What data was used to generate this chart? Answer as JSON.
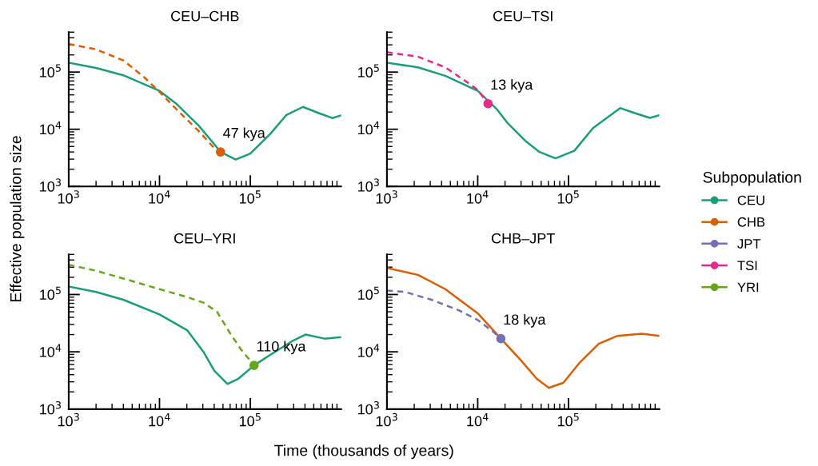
{
  "chart_data": [
    {
      "type": "line",
      "title": "CEU–CHB",
      "ylabel": "Effective population size",
      "legend": "right",
      "legend_title": "Subpopulation",
      "xlim": [
        1000,
        1000000
      ],
      "ylim": [
        1000,
        500000
      ],
      "xticks": [
        {
          "value": 1000,
          "label": "10$^{3}$"
        },
        {
          "value": 10000,
          "label": "10$^{4}$"
        },
        {
          "value": 100000,
          "label": "10$^{5}$"
        }
      ],
      "yticks": [
        {
          "value": 1000,
          "label": "10$^{3}$"
        },
        {
          "value": 10000,
          "label": "10$^{4}$"
        },
        {
          "value": 100000,
          "label": "10$^{5}$"
        }
      ],
      "log": "xy",
      "grid": false,
      "series": [
        {
          "name": "CEU",
          "color": "#1b9e77",
          "line_style": "solid",
          "x": [
            1000,
            2000,
            4000,
            10000,
            15500,
            27000,
            40000,
            47000,
            69000,
            100000,
            167000,
            250000,
            380000,
            575000,
            800000,
            1000000
          ],
          "values": [
            146000,
            118000,
            88000,
            47000,
            27500,
            11600,
            5500,
            4000,
            2950,
            3760,
            8400,
            17800,
            24600,
            19000,
            15700,
            17500
          ]
        },
        {
          "name": "CHB",
          "color": "#d95f02",
          "line_style": "dashed",
          "x": [
            1000,
            2000,
            4000,
            6800,
            10000,
            15500,
            27000,
            40000,
            47000
          ],
          "values": [
            310000,
            250000,
            160000,
            81000,
            45000,
            22000,
            9300,
            4700,
            4000
          ]
        },
        {
          "type": "scatter",
          "marker": "circle",
          "color": "#d95f02",
          "x": [
            47000
          ],
          "values": [
            4000
          ]
        }
      ],
      "annotations": [
        {
          "text": "47 kya",
          "x": 47000,
          "y": 4000
        }
      ]
    },
    {
      "type": "line",
      "title": "CEU–TSI",
      "xlim": [
        1000,
        1000000
      ],
      "ylim": [
        1000,
        500000
      ],
      "xticks": [
        {
          "value": 1000,
          "label": "10$^{3}$"
        },
        {
          "value": 10000,
          "label": "10$^{4}$"
        },
        {
          "value": 100000,
          "label": "10$^{5}$"
        }
      ],
      "yticks": [
        {
          "value": 1000,
          "label": "10$^{3}$"
        },
        {
          "value": 10000,
          "label": "10$^{4}$"
        },
        {
          "value": 100000,
          "label": "10$^{5}$"
        }
      ],
      "log": "xy",
      "grid": false,
      "series": [
        {
          "name": "CEU",
          "color": "#1b9e77",
          "line_style": "solid",
          "x": [
            1000,
            2200,
            4400,
            10000,
            16000,
            21200,
            34100,
            48000,
            72000,
            116000,
            186000,
            371000,
            521000,
            786000,
            1000000
          ],
          "values": [
            146000,
            121000,
            86000,
            47000,
            23000,
            13000,
            6100,
            4000,
            3100,
            4200,
            10500,
            23500,
            19500,
            15800,
            17600
          ]
        },
        {
          "name": "TSI",
          "color": "#e7298a",
          "line_style": "dashed",
          "x": [
            1000,
            2200,
            4400,
            7600,
            10000,
            13000
          ],
          "values": [
            223000,
            186000,
            121000,
            67000,
            49000,
            28000
          ]
        },
        {
          "type": "scatter",
          "marker": "circle",
          "color": "#e7298a",
          "x": [
            13000
          ],
          "values": [
            28000
          ]
        }
      ],
      "annotations": [
        {
          "text": "13 kya",
          "x": 13000,
          "y": 28000
        }
      ]
    },
    {
      "type": "line",
      "title": "CEU–YRI",
      "xlabel": "Time (thousands of years)",
      "xlim": [
        1000,
        1000000
      ],
      "ylim": [
        1000,
        500000
      ],
      "xticks": [
        {
          "value": 1000,
          "label": "10$^{3}$"
        },
        {
          "value": 10000,
          "label": "10$^{4}$"
        },
        {
          "value": 100000,
          "label": "10$^{5}$"
        }
      ],
      "yticks": [
        {
          "value": 1000,
          "label": "10$^{3}$"
        },
        {
          "value": 10000,
          "label": "10$^{4}$"
        },
        {
          "value": 100000,
          "label": "10$^{5}$"
        }
      ],
      "log": "xy",
      "grid": false,
      "series": [
        {
          "name": "CEU",
          "color": "#1b9e77",
          "line_style": "solid",
          "x": [
            1000,
            2000,
            4000,
            10000,
            20300,
            30500,
            40000,
            56000,
            74000,
            110000,
            168000,
            290000,
            405000,
            655000,
            1000000
          ],
          "values": [
            138000,
            111000,
            81000,
            45000,
            23600,
            10000,
            4700,
            2750,
            3400,
            5800,
            9000,
            15400,
            20000,
            17000,
            18000
          ]
        },
        {
          "name": "YRI",
          "color": "#66a61e",
          "line_style": "dashed",
          "x": [
            1000,
            2000,
            4000,
            10000,
            20300,
            30500,
            43000,
            60000,
            79000,
            110000
          ],
          "values": [
            330000,
            260000,
            190000,
            124000,
            90000,
            72000,
            50000,
            21000,
            11000,
            5800
          ]
        },
        {
          "type": "scatter",
          "marker": "circle",
          "color": "#66a61e",
          "x": [
            110000
          ],
          "values": [
            5800
          ]
        }
      ],
      "annotations": [
        {
          "text": "110 kya",
          "x": 110000,
          "y": 5800
        }
      ]
    },
    {
      "type": "line",
      "title": "CHB–JPT",
      "xlim": [
        1000,
        1000000
      ],
      "ylim": [
        1000,
        500000
      ],
      "xticks": [
        {
          "value": 1000,
          "label": "10$^{3}$"
        },
        {
          "value": 10000,
          "label": "10$^{4}$"
        },
        {
          "value": 100000,
          "label": "10$^{5}$"
        }
      ],
      "yticks": [
        {
          "value": 1000,
          "label": "10$^{3}$"
        },
        {
          "value": 10000,
          "label": "10$^{4}$"
        },
        {
          "value": 100000,
          "label": "10$^{5}$"
        }
      ],
      "log": "xy",
      "grid": false,
      "series": [
        {
          "name": "CHB",
          "color": "#d95f02",
          "line_style": "solid",
          "x": [
            1000,
            2200,
            4400,
            10000,
            18000,
            29700,
            44600,
            60800,
            88000,
            133000,
            215000,
            346000,
            640000,
            1000000
          ],
          "values": [
            290000,
            220000,
            124000,
            47000,
            17000,
            7200,
            3400,
            2350,
            2900,
            6500,
            13800,
            19000,
            20700,
            19000
          ]
        },
        {
          "name": "JPT",
          "color": "#7570b3",
          "line_style": "dashed",
          "x": [
            1000,
            1580,
            3100,
            6200,
            10000,
            15000,
            18000
          ],
          "values": [
            117000,
            111000,
            81000,
            53000,
            36000,
            22000,
            17000
          ]
        },
        {
          "type": "scatter",
          "marker": "circle",
          "color": "#7570b3",
          "x": [
            18000
          ],
          "values": [
            17000
          ]
        }
      ],
      "annotations": [
        {
          "text": "18 kya",
          "x": 18000,
          "y": 17000
        }
      ]
    }
  ]
}
